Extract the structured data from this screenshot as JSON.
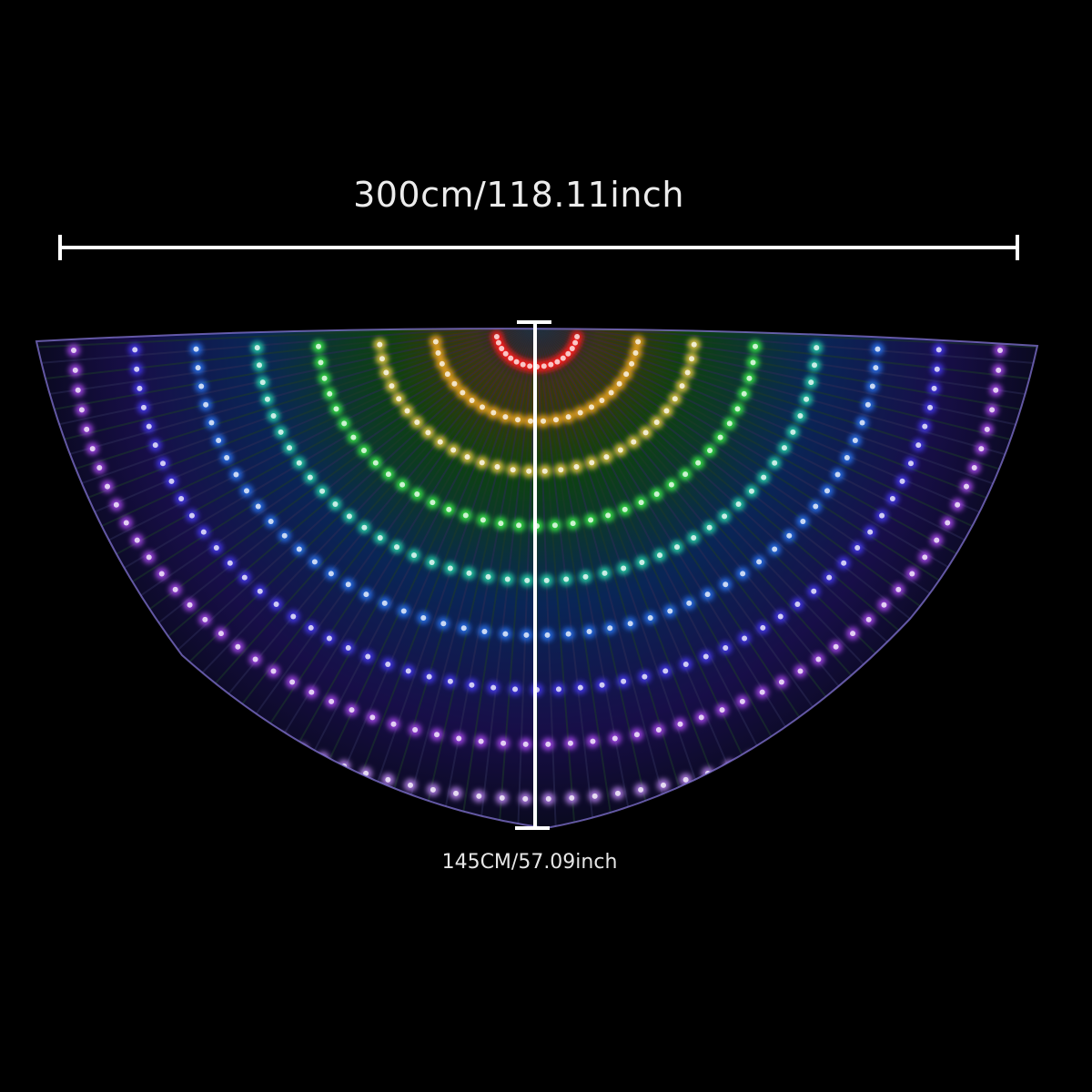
{
  "product": {
    "width_dimension": "300cm/118.11inch",
    "height_dimension": "145CM/57.09inch"
  },
  "colors": {
    "background": "#000000",
    "dimension_lines": "#ffffff",
    "led_rings": [
      "#ff1a1a",
      "#ffb020",
      "#ffd84a",
      "#3bff4a",
      "#28e6b0",
      "#2a7bff",
      "#4a3bff",
      "#b44cff"
    ],
    "edge_purple": "#c58cff"
  },
  "icons": {
    "wing": "isis-wings-led-icon"
  }
}
